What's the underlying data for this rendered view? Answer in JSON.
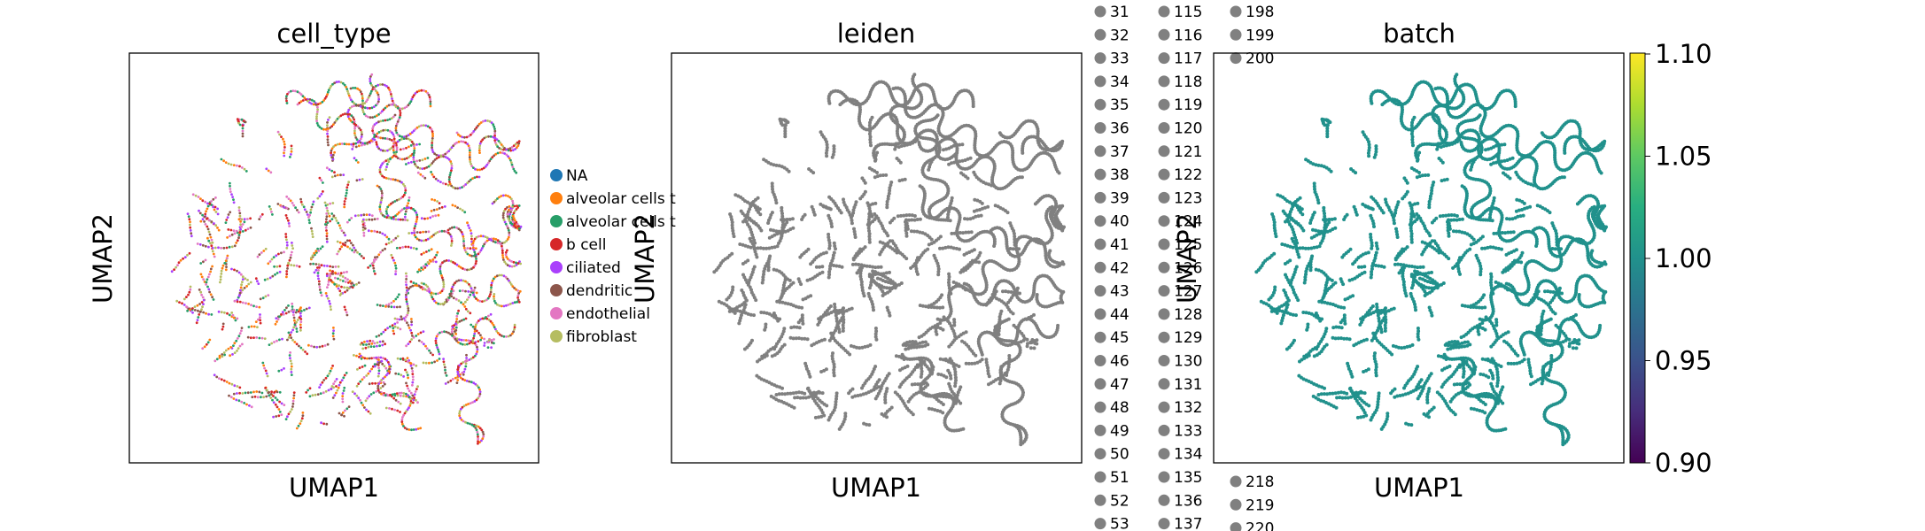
{
  "chart_data": [
    {
      "type": "scatter",
      "title": "cell_type",
      "xlabel": "UMAP1",
      "ylabel": "UMAP2",
      "legend": {
        "placement": "right",
        "entries": [
          {
            "label": "NA",
            "color": "#1f77b4"
          },
          {
            "label": "alveolar cells t",
            "color": "#ff7f0e"
          },
          {
            "label": "alveolar cells t",
            "color": "#279e68"
          },
          {
            "label": "b cell",
            "color": "#d62728"
          },
          {
            "label": "ciliated",
            "color": "#aa40fc"
          },
          {
            "label": "dendritic",
            "color": "#8c564b"
          },
          {
            "label": "endothelial",
            "color": "#e377c2"
          },
          {
            "label": "fibroblast",
            "color": "#b5bd61"
          }
        ]
      },
      "point_colors": [
        "#ff7f0e",
        "#279e68",
        "#8c564b",
        "#e377c2",
        "#b5bd61",
        "#d62728",
        "#aa40fc"
      ]
    },
    {
      "type": "scatter",
      "title": "leiden",
      "xlabel": "UMAP1",
      "ylabel": "UMAP2",
      "point_color": "#808080",
      "legend": {
        "placement": "right",
        "entries": [
          {
            "label": "31",
            "color": "#808080"
          },
          {
            "label": "32",
            "color": "#808080"
          },
          {
            "label": "33",
            "color": "#808080"
          },
          {
            "label": "34",
            "color": "#808080"
          },
          {
            "label": "35",
            "color": "#808080"
          },
          {
            "label": "36",
            "color": "#808080"
          },
          {
            "label": "37",
            "color": "#808080"
          },
          {
            "label": "38",
            "color": "#808080"
          },
          {
            "label": "39",
            "color": "#808080"
          },
          {
            "label": "40",
            "color": "#808080"
          },
          {
            "label": "41",
            "color": "#808080"
          },
          {
            "label": "42",
            "color": "#808080"
          },
          {
            "label": "43",
            "color": "#808080"
          },
          {
            "label": "44",
            "color": "#808080"
          },
          {
            "label": "45",
            "color": "#808080"
          },
          {
            "label": "46",
            "color": "#808080"
          },
          {
            "label": "47",
            "color": "#808080"
          },
          {
            "label": "48",
            "color": "#808080"
          },
          {
            "label": "49",
            "color": "#808080"
          },
          {
            "label": "50",
            "color": "#808080"
          },
          {
            "label": "51",
            "color": "#808080"
          },
          {
            "label": "52",
            "color": "#808080"
          },
          {
            "label": "53",
            "color": "#808080"
          },
          {
            "label": "115",
            "color": "#808080"
          },
          {
            "label": "116",
            "color": "#808080"
          },
          {
            "label": "117",
            "color": "#808080"
          },
          {
            "label": "118",
            "color": "#808080"
          },
          {
            "label": "119",
            "color": "#808080"
          },
          {
            "label": "120",
            "color": "#808080"
          },
          {
            "label": "121",
            "color": "#808080"
          },
          {
            "label": "122",
            "color": "#808080"
          },
          {
            "label": "123",
            "color": "#808080"
          },
          {
            "label": "124",
            "color": "#808080"
          },
          {
            "label": "125",
            "color": "#808080"
          },
          {
            "label": "126",
            "color": "#808080"
          },
          {
            "label": "127",
            "color": "#808080"
          },
          {
            "label": "128",
            "color": "#808080"
          },
          {
            "label": "129",
            "color": "#808080"
          },
          {
            "label": "130",
            "color": "#808080"
          },
          {
            "label": "131",
            "color": "#808080"
          },
          {
            "label": "132",
            "color": "#808080"
          },
          {
            "label": "133",
            "color": "#808080"
          },
          {
            "label": "134",
            "color": "#808080"
          },
          {
            "label": "135",
            "color": "#808080"
          },
          {
            "label": "136",
            "color": "#808080"
          },
          {
            "label": "137",
            "color": "#808080"
          },
          {
            "label": "198",
            "color": "#808080"
          },
          {
            "label": "199",
            "color": "#808080"
          },
          {
            "label": "200",
            "color": "#808080"
          },
          {
            "label": "218",
            "color": "#808080"
          },
          {
            "label": "219",
            "color": "#808080"
          },
          {
            "label": "220",
            "color": "#808080"
          }
        ]
      }
    },
    {
      "type": "scatter",
      "title": "batch",
      "xlabel": "UMAP1",
      "ylabel": "UMAP2",
      "point_color": "#21918c",
      "colorbar": {
        "colormap": "viridis",
        "ticks": [
          "1.10",
          "1.05",
          "1.00",
          "0.95",
          "0.90"
        ],
        "range": [
          0.9,
          1.1
        ]
      }
    }
  ]
}
